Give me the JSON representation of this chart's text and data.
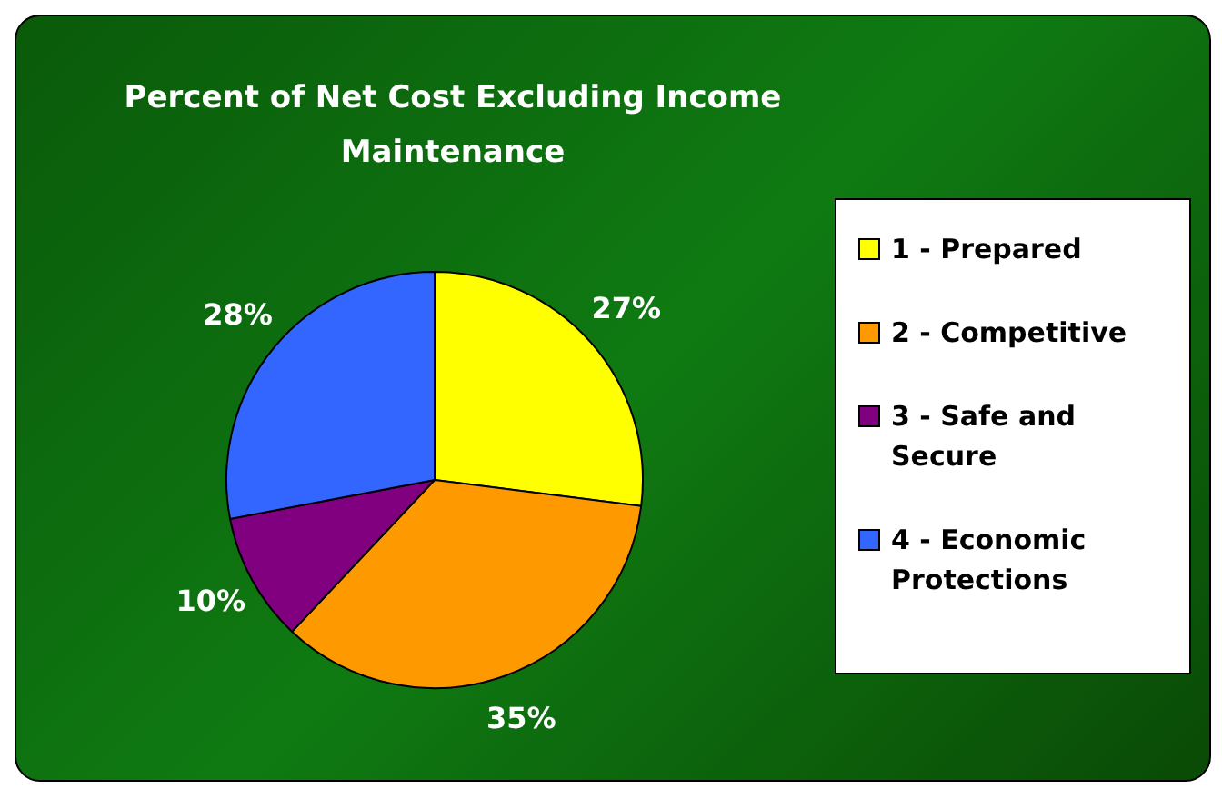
{
  "chart_data": {
    "type": "pie",
    "title": "Percent of Net Cost Excluding Income Maintenance",
    "categories": [
      "1 - Prepared",
      "2 - Competitive",
      "3 - Safe and Secure",
      "4 - Economic Protections"
    ],
    "values": [
      27,
      35,
      10,
      28
    ],
    "colors": [
      "#ffff00",
      "#ff9900",
      "#800080",
      "#3366ff"
    ],
    "value_labels": [
      "27%",
      "35%",
      "10%",
      "28%"
    ],
    "legend": "right"
  }
}
